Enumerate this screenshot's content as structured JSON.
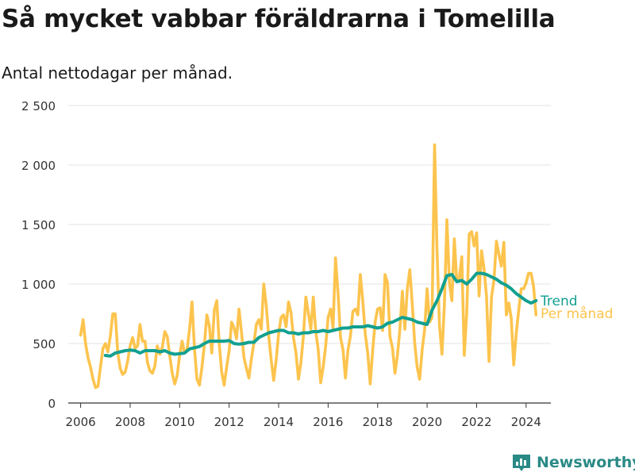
{
  "title": "Så mycket vabbar föräldrarna i Tomelilla",
  "subtitle": "Antal nettodagar per månad.",
  "brand": "Newsworthy",
  "chart_data": {
    "type": "line",
    "title": "Så mycket vabbar föräldrarna i Tomelilla",
    "subtitle": "Antal nettodagar per månad.",
    "xlabel": "",
    "ylabel": "",
    "x_unit": "year",
    "xlim": [
      2005.5,
      2025.0
    ],
    "ylim": [
      0,
      2500
    ],
    "yticks": [
      0,
      500,
      1000,
      1500,
      2000,
      2500
    ],
    "ytick_labels": [
      "0",
      "500",
      "1 000",
      "1 500",
      "2 000",
      "2 500"
    ],
    "xticks": [
      2006,
      2008,
      2010,
      2012,
      2014,
      2016,
      2018,
      2020,
      2022,
      2024
    ],
    "xtick_labels": [
      "2006",
      "2008",
      "2010",
      "2012",
      "2014",
      "2016",
      "2018",
      "2020",
      "2022",
      "2024"
    ],
    "grid": "horizontal",
    "legend": "inline-right",
    "series": [
      {
        "name": "Per månad",
        "color": "#fcc44e",
        "x": [
          2006.0,
          2006.1,
          2006.2,
          2006.3,
          2006.4,
          2006.5,
          2006.6,
          2006.7,
          2006.8,
          2006.9,
          2007.0,
          2007.1,
          2007.2,
          2007.3,
          2007.4,
          2007.5,
          2007.6,
          2007.7,
          2007.8,
          2007.9,
          2008.0,
          2008.1,
          2008.2,
          2008.3,
          2008.4,
          2008.5,
          2008.6,
          2008.7,
          2008.8,
          2008.9,
          2009.0,
          2009.1,
          2009.2,
          2009.3,
          2009.4,
          2009.5,
          2009.6,
          2009.7,
          2009.8,
          2009.9,
          2010.0,
          2010.1,
          2010.2,
          2010.3,
          2010.4,
          2010.5,
          2010.6,
          2010.7,
          2010.8,
          2010.9,
          2011.0,
          2011.1,
          2011.2,
          2011.3,
          2011.4,
          2011.5,
          2011.6,
          2011.7,
          2011.8,
          2011.9,
          2012.0,
          2012.1,
          2012.2,
          2012.3,
          2012.4,
          2012.5,
          2012.6,
          2012.7,
          2012.8,
          2012.9,
          2013.0,
          2013.1,
          2013.2,
          2013.3,
          2013.4,
          2013.5,
          2013.6,
          2013.7,
          2013.8,
          2013.9,
          2014.0,
          2014.1,
          2014.2,
          2014.3,
          2014.4,
          2014.5,
          2014.6,
          2014.7,
          2014.8,
          2014.9,
          2015.0,
          2015.1,
          2015.2,
          2015.3,
          2015.4,
          2015.5,
          2015.6,
          2015.7,
          2015.8,
          2015.9,
          2016.0,
          2016.1,
          2016.2,
          2016.3,
          2016.4,
          2016.5,
          2016.6,
          2016.7,
          2016.8,
          2016.9,
          2017.0,
          2017.1,
          2017.2,
          2017.3,
          2017.4,
          2017.5,
          2017.6,
          2017.7,
          2017.8,
          2017.9,
          2018.0,
          2018.1,
          2018.2,
          2018.3,
          2018.4,
          2018.5,
          2018.6,
          2018.7,
          2018.8,
          2018.9,
          2019.0,
          2019.1,
          2019.2,
          2019.3,
          2019.4,
          2019.5,
          2019.6,
          2019.7,
          2019.8,
          2019.9,
          2020.0,
          2020.1,
          2020.2,
          2020.3,
          2020.4,
          2020.5,
          2020.6,
          2020.7,
          2020.8,
          2020.9,
          2021.0,
          2021.1,
          2021.2,
          2021.3,
          2021.4,
          2021.5,
          2021.6,
          2021.7,
          2021.8,
          2021.9,
          2022.0,
          2022.1,
          2022.2,
          2022.3,
          2022.4,
          2022.5,
          2022.6,
          2022.7,
          2022.8,
          2022.9,
          2023.0,
          2023.1,
          2023.2,
          2023.3,
          2023.4,
          2023.5,
          2023.6,
          2023.7,
          2023.8,
          2023.9,
          2024.0,
          2024.1,
          2024.2,
          2024.3,
          2024.4
        ],
        "values": [
          570,
          700,
          500,
          380,
          300,
          200,
          130,
          140,
          300,
          460,
          500,
          430,
          560,
          750,
          750,
          420,
          290,
          240,
          260,
          350,
          480,
          550,
          460,
          480,
          660,
          520,
          520,
          340,
          270,
          250,
          310,
          480,
          410,
          470,
          600,
          560,
          400,
          250,
          160,
          230,
          400,
          520,
          420,
          450,
          620,
          850,
          460,
          200,
          150,
          300,
          490,
          740,
          650,
          420,
          780,
          860,
          500,
          260,
          150,
          300,
          440,
          680,
          630,
          540,
          790,
          590,
          380,
          290,
          210,
          370,
          500,
          660,
          700,
          620,
          1000,
          820,
          560,
          360,
          190,
          360,
          580,
          720,
          740,
          640,
          850,
          760,
          550,
          420,
          200,
          340,
          560,
          890,
          760,
          620,
          890,
          600,
          450,
          170,
          300,
          480,
          720,
          790,
          630,
          1220,
          920,
          550,
          450,
          210,
          440,
          560,
          770,
          790,
          740,
          1080,
          860,
          580,
          420,
          160,
          440,
          680,
          790,
          800,
          610,
          1080,
          1010,
          560,
          460,
          250,
          400,
          620,
          940,
          620,
          960,
          1120,
          830,
          500,
          300,
          200,
          450,
          620,
          960,
          680,
          720,
          2170,
          1280,
          650,
          410,
          830,
          1540,
          1010,
          860,
          1380,
          1020,
          1050,
          1230,
          400,
          760,
          1420,
          1440,
          1320,
          1430,
          900,
          1280,
          1130,
          900,
          350,
          890,
          1030,
          1360,
          1250,
          1150,
          1350,
          740,
          840,
          710,
          320,
          580,
          780,
          960,
          960,
          1010,
          1090,
          1090,
          980,
          740
        ]
      },
      {
        "name": "Trend",
        "color": "#12a090",
        "x": [
          2007.0,
          2007.2,
          2007.4,
          2007.6,
          2007.8,
          2008.0,
          2008.2,
          2008.4,
          2008.6,
          2008.8,
          2009.0,
          2009.2,
          2009.4,
          2009.6,
          2009.8,
          2010.0,
          2010.2,
          2010.4,
          2010.6,
          2010.8,
          2011.0,
          2011.2,
          2011.4,
          2011.6,
          2011.8,
          2012.0,
          2012.2,
          2012.4,
          2012.6,
          2012.8,
          2013.0,
          2013.2,
          2013.4,
          2013.6,
          2013.8,
          2014.0,
          2014.2,
          2014.4,
          2014.6,
          2014.8,
          2015.0,
          2015.2,
          2015.4,
          2015.6,
          2015.8,
          2016.0,
          2016.2,
          2016.4,
          2016.6,
          2016.8,
          2017.0,
          2017.2,
          2017.4,
          2017.6,
          2017.8,
          2018.0,
          2018.2,
          2018.4,
          2018.6,
          2018.8,
          2019.0,
          2019.2,
          2019.4,
          2019.6,
          2019.8,
          2020.0,
          2020.2,
          2020.4,
          2020.6,
          2020.8,
          2021.0,
          2021.2,
          2021.4,
          2021.6,
          2021.8,
          2022.0,
          2022.2,
          2022.4,
          2022.6,
          2022.8,
          2023.0,
          2023.2,
          2023.4,
          2023.6,
          2023.8,
          2024.0,
          2024.2,
          2024.4
        ],
        "values": [
          400,
          395,
          420,
          430,
          440,
          445,
          440,
          420,
          440,
          440,
          440,
          430,
          440,
          420,
          410,
          415,
          420,
          455,
          465,
          475,
          500,
          520,
          520,
          520,
          520,
          525,
          500,
          495,
          500,
          510,
          510,
          550,
          570,
          590,
          600,
          610,
          610,
          590,
          590,
          580,
          590,
          590,
          600,
          600,
          610,
          600,
          610,
          620,
          630,
          630,
          640,
          640,
          640,
          650,
          640,
          630,
          640,
          670,
          680,
          700,
          720,
          710,
          700,
          680,
          670,
          660,
          780,
          860,
          960,
          1070,
          1080,
          1020,
          1030,
          1000,
          1040,
          1090,
          1090,
          1080,
          1060,
          1040,
          1010,
          990,
          960,
          920,
          890,
          860,
          840,
          860
        ]
      }
    ]
  }
}
